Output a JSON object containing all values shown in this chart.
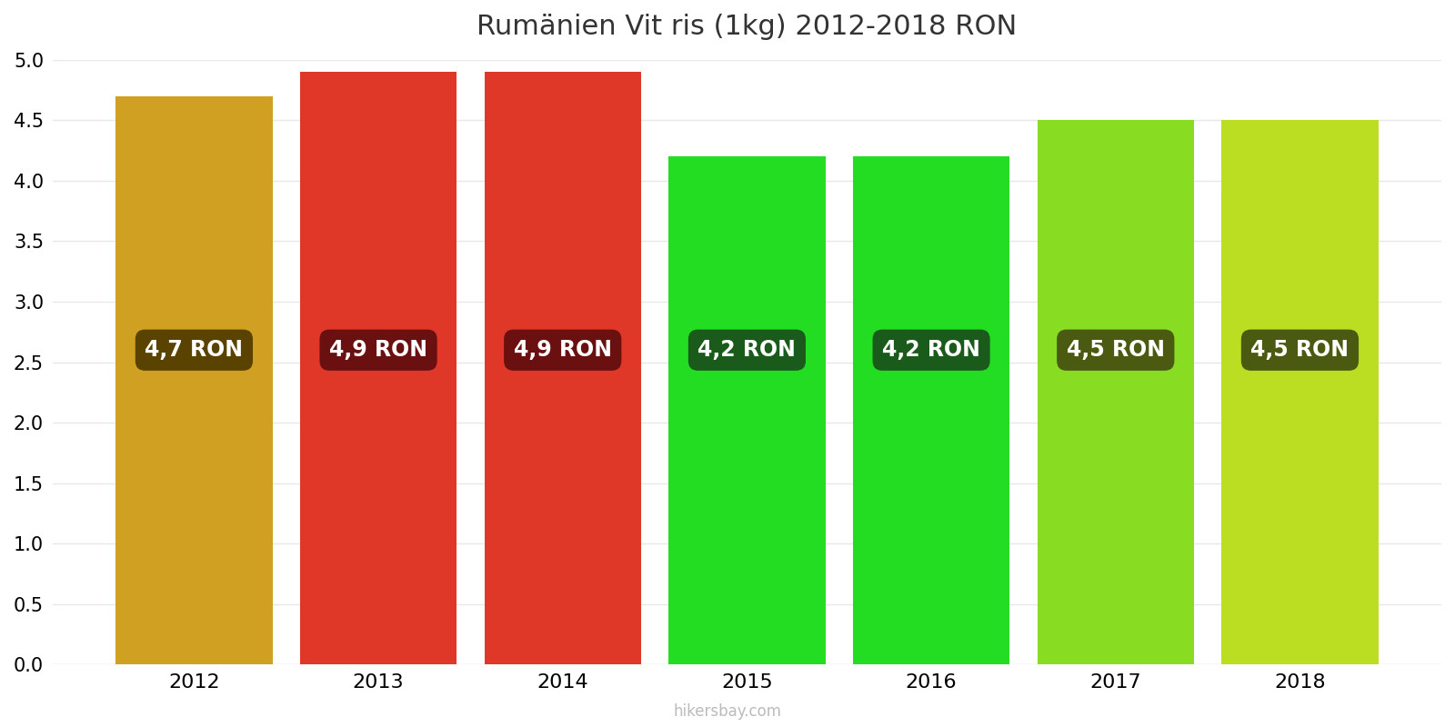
{
  "title": "Rumänien Vit ris (1kg) 2012-2018 RON",
  "years": [
    2012,
    2013,
    2014,
    2015,
    2016,
    2017,
    2018
  ],
  "values": [
    4.7,
    4.9,
    4.9,
    4.2,
    4.2,
    4.5,
    4.5
  ],
  "labels": [
    "4,7 RON",
    "4,9 RON",
    "4,9 RON",
    "4,2 RON",
    "4,2 RON",
    "4,5 RON",
    "4,5 RON"
  ],
  "bar_colors": [
    "#CFA022",
    "#E03828",
    "#E03828",
    "#22DD22",
    "#22DD22",
    "#88DD22",
    "#BBDD22"
  ],
  "label_bg_colors": [
    "#5A4200",
    "#6B1010",
    "#6B1010",
    "#1A5A1A",
    "#1A5A1A",
    "#4A5A10",
    "#4A5A10"
  ],
  "ylim": [
    0,
    5.0
  ],
  "yticks": [
    0,
    0.5,
    1.0,
    1.5,
    2.0,
    2.5,
    3.0,
    3.5,
    4.0,
    4.5,
    5.0
  ],
  "watermark": "hikersbay.com",
  "title_fontsize": 22,
  "label_fontsize": 17,
  "tick_fontsize": 15,
  "background_color": "#ffffff",
  "grid_color": "#e8e8e8",
  "bar_width": 0.85
}
